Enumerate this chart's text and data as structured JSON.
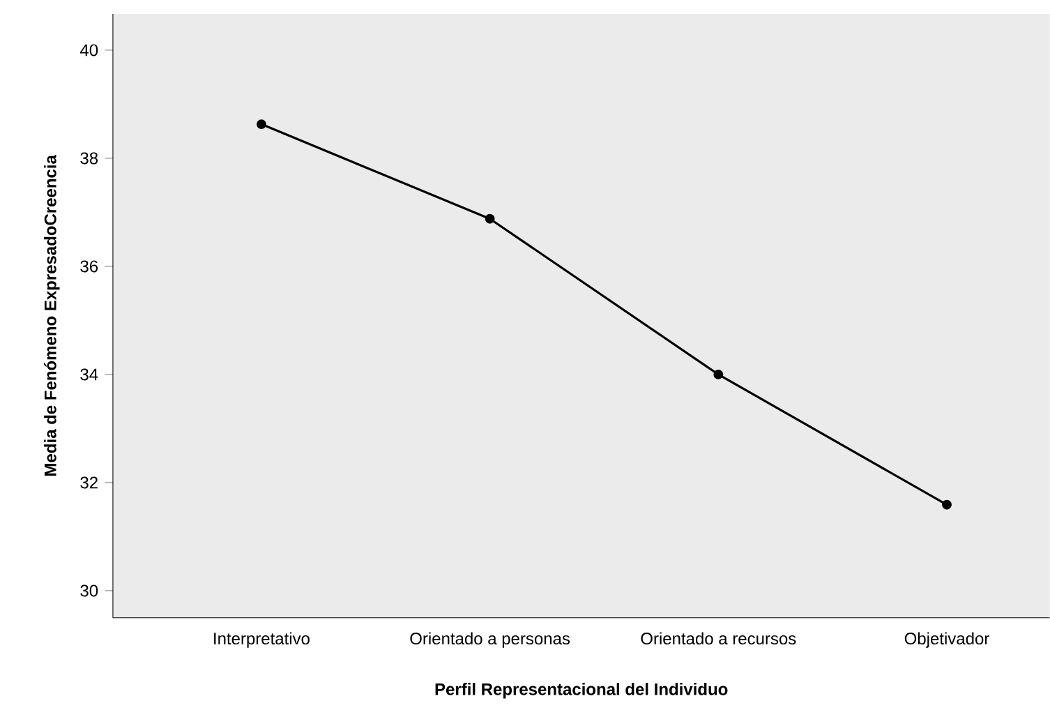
{
  "chart_data": {
    "type": "line",
    "xlabel": "Perfil Representacional del Individuo",
    "ylabel": "Media de Fenómeno ExpresadoCreencia",
    "categories": [
      "Interpretativo",
      "Orientado a personas",
      "Orientado a recursos",
      "Objetivador"
    ],
    "values": [
      38.63,
      36.88,
      34.0,
      31.59
    ],
    "color": "#000000",
    "marker": "circle",
    "line_style": "solid",
    "ylim": [
      29.5,
      40.67
    ],
    "yticks": [
      30,
      32,
      34,
      36,
      38,
      40
    ],
    "grid": false
  }
}
